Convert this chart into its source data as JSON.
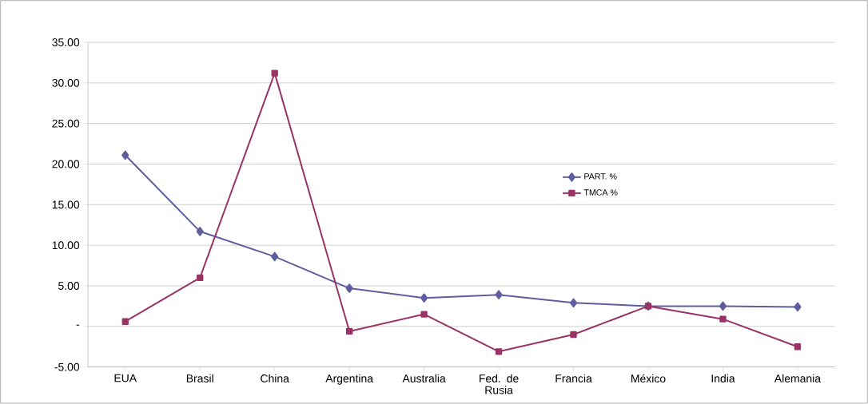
{
  "chart_data": {
    "type": "line",
    "categories": [
      "EUA",
      "Brasil",
      "China",
      "Argentina",
      "Australia",
      "Fed. de Rusia",
      "Francia",
      "México",
      "India",
      "Alemania"
    ],
    "series": [
      {
        "name": "PART. %",
        "color": "#5e5e9e",
        "marker": "diamond",
        "values": [
          21.1,
          11.7,
          8.6,
          4.7,
          3.5,
          3.9,
          2.9,
          2.5,
          2.5,
          2.4
        ]
      },
      {
        "name": "TMCA %",
        "color": "#993366",
        "marker": "square",
        "values": [
          0.6,
          6.0,
          31.2,
          -0.6,
          1.5,
          -3.1,
          -1.0,
          2.5,
          0.9,
          -2.5
        ]
      }
    ],
    "ylim": [
      -5,
      35
    ],
    "yticks": [
      {
        "value": -5,
        "label": "-5.00"
      },
      {
        "value": 0,
        "label": "-"
      },
      {
        "value": 5,
        "label": "5.00"
      },
      {
        "value": 10,
        "label": "10.00"
      },
      {
        "value": 15,
        "label": "15.00"
      },
      {
        "value": 20,
        "label": "20.00"
      },
      {
        "value": 25,
        "label": "25.00"
      },
      {
        "value": 30,
        "label": "30.00"
      },
      {
        "value": 35,
        "label": "35.00"
      }
    ],
    "grid": "y",
    "legend": "right"
  }
}
